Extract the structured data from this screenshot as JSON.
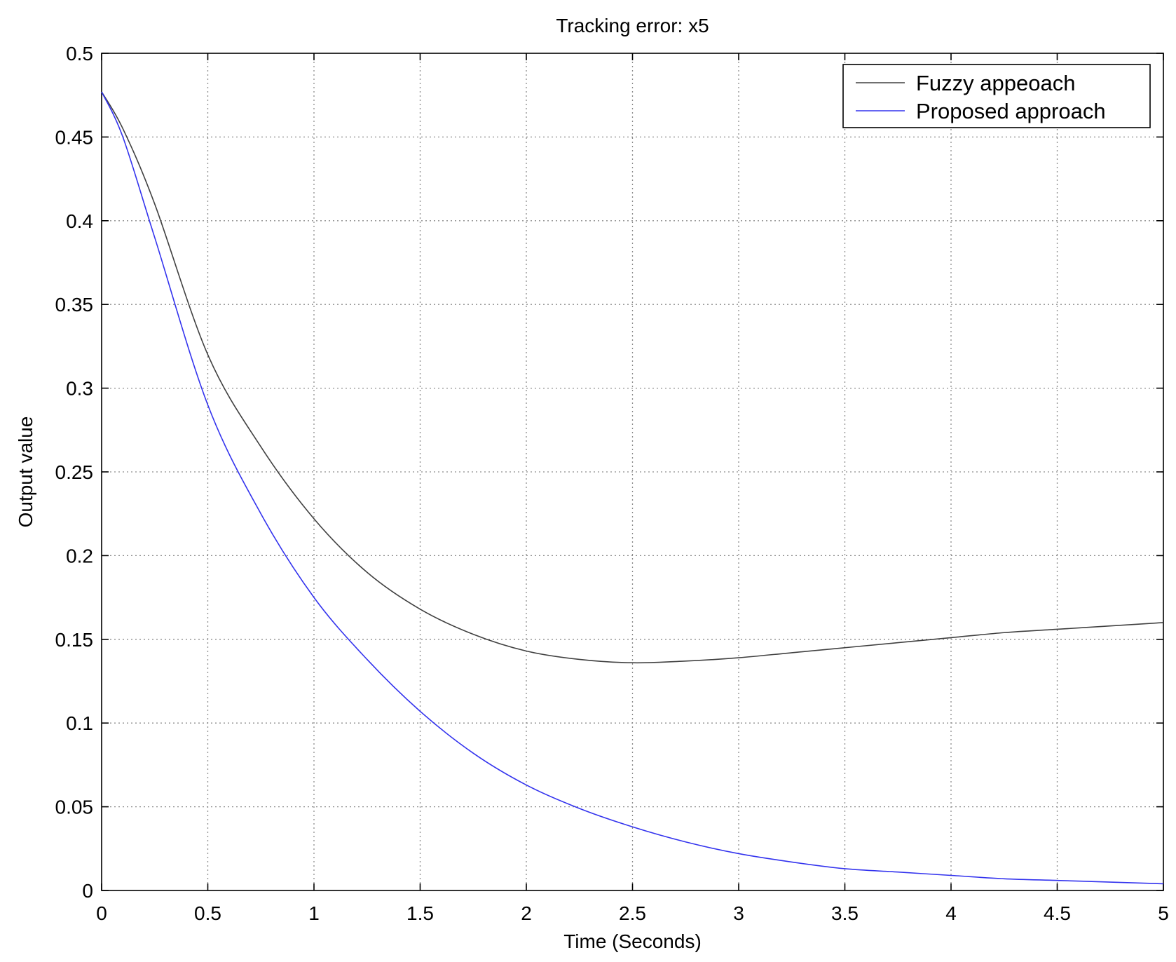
{
  "chart_data": {
    "type": "line",
    "title": "Tracking error: x5",
    "xlabel": "Time (Seconds)",
    "ylabel": "Output value",
    "xlim": [
      0,
      5
    ],
    "ylim": [
      0,
      0.5
    ],
    "xticks": [
      0,
      0.5,
      1,
      1.5,
      2,
      2.5,
      3,
      3.5,
      4,
      4.5,
      5
    ],
    "xtick_labels": [
      "0",
      "0.5",
      "1",
      "1.5",
      "2",
      "2.5",
      "3",
      "3.5",
      "4",
      "4.5",
      "5"
    ],
    "yticks": [
      0,
      0.05,
      0.1,
      0.15,
      0.2,
      0.25,
      0.3,
      0.35,
      0.4,
      0.45,
      0.5
    ],
    "ytick_labels": [
      "0",
      "0.05",
      "0.1",
      "0.15",
      "0.2",
      "0.25",
      "0.3",
      "0.35",
      "0.4",
      "0.45",
      "0.5"
    ],
    "grid": true,
    "legend_position": "top-right",
    "series": [
      {
        "name": "Fuzzy appeoach",
        "color": "#404040",
        "x": [
          0,
          0.1,
          0.25,
          0.5,
          0.75,
          1.0,
          1.25,
          1.5,
          1.75,
          2.0,
          2.25,
          2.5,
          2.75,
          3.0,
          3.25,
          3.5,
          3.75,
          4.0,
          4.25,
          4.5,
          4.75,
          5.0
        ],
        "y": [
          0.477,
          0.455,
          0.41,
          0.32,
          0.265,
          0.222,
          0.19,
          0.168,
          0.153,
          0.143,
          0.138,
          0.136,
          0.137,
          0.139,
          0.142,
          0.145,
          0.148,
          0.151,
          0.154,
          0.156,
          0.158,
          0.16
        ]
      },
      {
        "name": "Proposed approach",
        "color": "#3333ee",
        "x": [
          0,
          0.1,
          0.25,
          0.5,
          0.75,
          1.0,
          1.25,
          1.5,
          1.75,
          2.0,
          2.25,
          2.5,
          2.75,
          3.0,
          3.25,
          3.5,
          3.75,
          4.0,
          4.25,
          4.5,
          4.75,
          5.0
        ],
        "y": [
          0.477,
          0.45,
          0.39,
          0.29,
          0.225,
          0.175,
          0.138,
          0.107,
          0.082,
          0.063,
          0.049,
          0.038,
          0.029,
          0.022,
          0.017,
          0.013,
          0.011,
          0.009,
          0.007,
          0.006,
          0.005,
          0.004
        ]
      }
    ]
  }
}
